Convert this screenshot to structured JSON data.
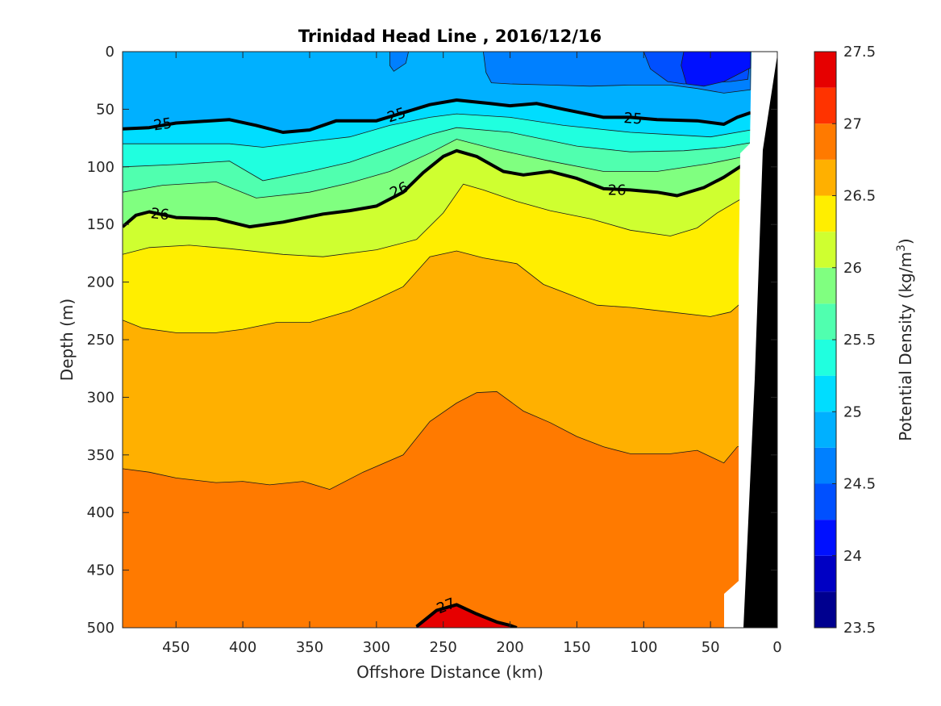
{
  "chart_data": {
    "type": "heatmap",
    "subtype": "filled-contour-section",
    "title": "Trinidad Head Line , 2016/12/16",
    "xlabel": "Offshore Distance (km)",
    "ylabel": "Depth (m)",
    "xlim": [
      490,
      0
    ],
    "ylim": [
      500,
      0
    ],
    "x_reversed": true,
    "y_reversed": true,
    "x_ticks": [
      "450",
      "400",
      "350",
      "300",
      "250",
      "200",
      "150",
      "100",
      "50",
      "0"
    ],
    "y_ticks": [
      "0",
      "50",
      "100",
      "150",
      "200",
      "250",
      "300",
      "350",
      "400",
      "450",
      "500"
    ],
    "colorbar": {
      "label_main": "Potential Density (kg/m",
      "label_sup": "3",
      "label_close": ")",
      "range": [
        23.5,
        27.5
      ],
      "levels": [
        23.5,
        23.75,
        24,
        24.25,
        24.5,
        24.75,
        25,
        25.25,
        25.5,
        25.75,
        26,
        26.25,
        26.5,
        26.75,
        27,
        27.25,
        27.5
      ],
      "colors": [
        "#00008f",
        "#0000c4",
        "#0010ff",
        "#0050ff",
        "#0080ff",
        "#00b0ff",
        "#00ddff",
        "#20ffdf",
        "#50ffaf",
        "#80ff80",
        "#cfff30",
        "#ffee00",
        "#ffb000",
        "#ff7a00",
        "#ff3300",
        "#e60000",
        "#a80000"
      ],
      "tick_labels": [
        "23.5",
        "24",
        "24.5",
        "25",
        "25.5",
        "26",
        "26.5",
        "27",
        "27.5"
      ]
    },
    "bold_contours": [
      {
        "level": 25,
        "label": "25",
        "points": [
          [
            490,
            67
          ],
          [
            470,
            66
          ],
          [
            450,
            62
          ],
          [
            410,
            59
          ],
          [
            390,
            64
          ],
          [
            370,
            70
          ],
          [
            350,
            68
          ],
          [
            330,
            60
          ],
          [
            300,
            60
          ],
          [
            280,
            53
          ],
          [
            260,
            46
          ],
          [
            240,
            42
          ],
          [
            215,
            45
          ],
          [
            200,
            47
          ],
          [
            180,
            45
          ],
          [
            160,
            50
          ],
          [
            130,
            57
          ],
          [
            110,
            57
          ],
          [
            90,
            59
          ],
          [
            60,
            60
          ],
          [
            40,
            63
          ],
          [
            30,
            57
          ],
          [
            20,
            53
          ]
        ]
      },
      {
        "level": 26,
        "label": "26",
        "points": [
          [
            490,
            152
          ],
          [
            480,
            142
          ],
          [
            470,
            139
          ],
          [
            450,
            144
          ],
          [
            420,
            145
          ],
          [
            395,
            152
          ],
          [
            370,
            148
          ],
          [
            340,
            141
          ],
          [
            320,
            138
          ],
          [
            300,
            134
          ],
          [
            280,
            122
          ],
          [
            265,
            105
          ],
          [
            250,
            91
          ],
          [
            240,
            86
          ],
          [
            225,
            91
          ],
          [
            205,
            104
          ],
          [
            190,
            107
          ],
          [
            170,
            104
          ],
          [
            150,
            110
          ],
          [
            130,
            119
          ],
          [
            110,
            120
          ],
          [
            90,
            122
          ],
          [
            75,
            125
          ],
          [
            55,
            118
          ],
          [
            40,
            109
          ],
          [
            20,
            94
          ]
        ]
      },
      {
        "level": 27,
        "label": "27",
        "points": [
          [
            270,
            499
          ],
          [
            255,
            485
          ],
          [
            240,
            480
          ],
          [
            225,
            488
          ],
          [
            210,
            495
          ],
          [
            200,
            498
          ],
          [
            195,
            500
          ]
        ]
      }
    ],
    "layers": [
      {
        "level": 25.25,
        "boundary": [
          [
            490,
            80
          ],
          [
            410,
            80
          ],
          [
            385,
            83
          ],
          [
            350,
            78
          ],
          [
            320,
            74
          ],
          [
            290,
            64
          ],
          [
            260,
            57
          ],
          [
            240,
            54
          ],
          [
            200,
            57
          ],
          [
            160,
            64
          ],
          [
            110,
            70
          ],
          [
            80,
            72
          ],
          [
            50,
            74
          ],
          [
            20,
            68
          ]
        ]
      },
      {
        "level": 25.5,
        "boundary": [
          [
            490,
            100
          ],
          [
            450,
            98
          ],
          [
            410,
            95
          ],
          [
            385,
            112
          ],
          [
            350,
            104
          ],
          [
            320,
            96
          ],
          [
            290,
            84
          ],
          [
            260,
            72
          ],
          [
            240,
            66
          ],
          [
            200,
            70
          ],
          [
            150,
            82
          ],
          [
            110,
            87
          ],
          [
            70,
            86
          ],
          [
            40,
            83
          ],
          [
            20,
            79
          ]
        ]
      },
      {
        "level": 25.75,
        "boundary": [
          [
            490,
            122
          ],
          [
            460,
            116
          ],
          [
            420,
            113
          ],
          [
            390,
            127
          ],
          [
            350,
            122
          ],
          [
            320,
            114
          ],
          [
            290,
            104
          ],
          [
            260,
            88
          ],
          [
            240,
            76
          ],
          [
            210,
            85
          ],
          [
            170,
            95
          ],
          [
            130,
            104
          ],
          [
            90,
            104
          ],
          [
            50,
            97
          ],
          [
            20,
            90
          ]
        ]
      },
      {
        "level": 26.25,
        "boundary": [
          [
            490,
            176
          ],
          [
            470,
            170
          ],
          [
            440,
            168
          ],
          [
            410,
            171
          ],
          [
            370,
            176
          ],
          [
            340,
            178
          ],
          [
            300,
            172
          ],
          [
            270,
            163
          ],
          [
            250,
            140
          ],
          [
            235,
            115
          ],
          [
            220,
            120
          ],
          [
            195,
            130
          ],
          [
            170,
            138
          ],
          [
            140,
            145
          ],
          [
            110,
            155
          ],
          [
            80,
            160
          ],
          [
            60,
            153
          ],
          [
            45,
            140
          ],
          [
            20,
            123
          ]
        ]
      },
      {
        "level": 26.5,
        "boundary": [
          [
            490,
            233
          ],
          [
            475,
            240
          ],
          [
            450,
            244
          ],
          [
            420,
            244
          ],
          [
            400,
            241
          ],
          [
            375,
            235
          ],
          [
            350,
            235
          ],
          [
            320,
            225
          ],
          [
            300,
            215
          ],
          [
            280,
            204
          ],
          [
            260,
            178
          ],
          [
            240,
            173
          ],
          [
            220,
            179
          ],
          [
            195,
            184
          ],
          [
            175,
            202
          ],
          [
            155,
            211
          ],
          [
            135,
            220
          ],
          [
            110,
            222
          ],
          [
            80,
            226
          ],
          [
            50,
            230
          ],
          [
            35,
            226
          ],
          [
            20,
            211
          ]
        ]
      },
      {
        "level": 26.75,
        "boundary": [
          [
            490,
            362
          ],
          [
            470,
            365
          ],
          [
            450,
            370
          ],
          [
            420,
            374
          ],
          [
            400,
            373
          ],
          [
            380,
            376
          ],
          [
            355,
            373
          ],
          [
            335,
            380
          ],
          [
            310,
            365
          ],
          [
            280,
            350
          ],
          [
            260,
            321
          ],
          [
            240,
            305
          ],
          [
            225,
            296
          ],
          [
            210,
            295
          ],
          [
            190,
            312
          ],
          [
            170,
            322
          ],
          [
            150,
            334
          ],
          [
            130,
            343
          ],
          [
            110,
            349
          ],
          [
            80,
            349
          ],
          [
            60,
            346
          ],
          [
            40,
            357
          ],
          [
            30,
            343
          ],
          [
            20,
            340
          ]
        ]
      },
      {
        "level": 26.0,
        "boundary_note": "bold contour 26"
      },
      {
        "level": 24.75,
        "boundary": [
          [
            490,
            0
          ],
          [
            0,
            0
          ]
        ]
      }
    ],
    "annotations": []
  }
}
